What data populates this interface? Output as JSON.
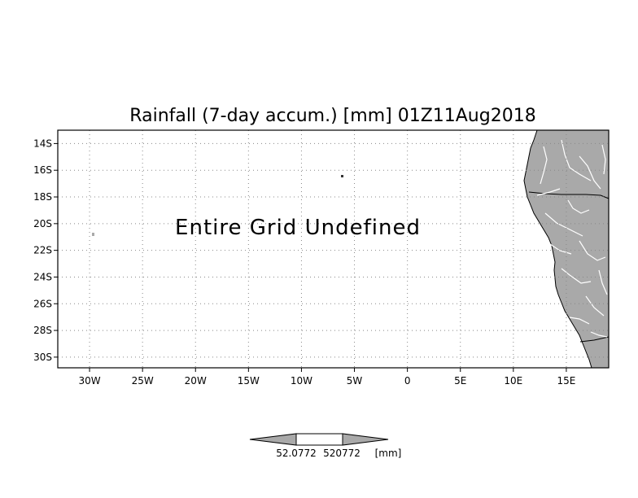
{
  "title": "Rainfall (7-day accum.) [mm] 01Z11Aug2018",
  "message": "Entire Grid Undefined",
  "map": {
    "lon_range": [
      -33,
      19
    ],
    "lat_range": [
      -30.8,
      -13.0
    ],
    "grid": "dotted",
    "land_color": "#a9a9a9",
    "ocean_color": "#ffffff",
    "river_color": "#ffffff"
  },
  "axes": {
    "x_ticks": [
      {
        "value": -30,
        "label": "30W"
      },
      {
        "value": -25,
        "label": "25W"
      },
      {
        "value": -20,
        "label": "20W"
      },
      {
        "value": -15,
        "label": "15W"
      },
      {
        "value": -10,
        "label": "10W"
      },
      {
        "value": -5,
        "label": "5W"
      },
      {
        "value": 0,
        "label": "0"
      },
      {
        "value": 5,
        "label": "5E"
      },
      {
        "value": 10,
        "label": "10E"
      },
      {
        "value": 15,
        "label": "15E"
      }
    ],
    "y_ticks": [
      {
        "value": -14,
        "label": "14S"
      },
      {
        "value": -16,
        "label": "16S"
      },
      {
        "value": -18,
        "label": "18S"
      },
      {
        "value": -20,
        "label": "20S"
      },
      {
        "value": -22,
        "label": "22S"
      },
      {
        "value": -24,
        "label": "24S"
      },
      {
        "value": -26,
        "label": "26S"
      },
      {
        "value": -28,
        "label": "28S"
      },
      {
        "value": -30,
        "label": "30S"
      }
    ]
  },
  "colorbar": {
    "labels": [
      "52.0772",
      "520772"
    ],
    "unit": "[mm]",
    "colors": {
      "ends": "#a9a9a9",
      "middle": "#ffffff"
    }
  }
}
